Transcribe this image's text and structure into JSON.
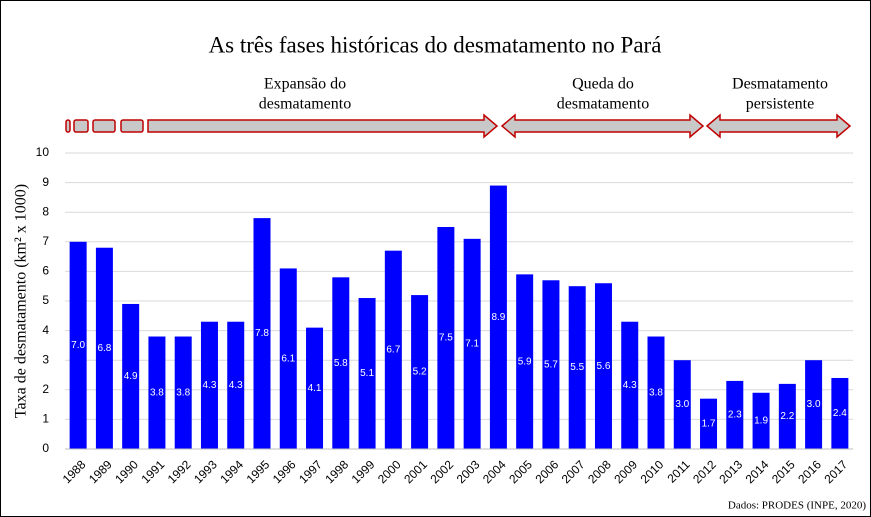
{
  "chart_data": {
    "type": "bar",
    "title": "As três fases históricas do desmatamento no Pará",
    "y_label": "Taxa de desmatamento (km² x 1000)",
    "source": "Dados: PRODES (INPE, 2020)",
    "phases": [
      [
        "Expansão do",
        "desmatamento"
      ],
      [
        "Queda do",
        "desmatamento"
      ],
      [
        "Desmatamento",
        "persistente"
      ]
    ],
    "categories": [
      "1988",
      "1989",
      "1990",
      "1991",
      "1992",
      "1993",
      "1994",
      "1995",
      "1996",
      "1997",
      "1998",
      "1999",
      "2000",
      "2001",
      "2002",
      "2003",
      "2004",
      "2005",
      "2006",
      "2007",
      "2008",
      "2009",
      "2010",
      "2011",
      "2012",
      "2013",
      "2014",
      "2015",
      "2016",
      "2017"
    ],
    "values": [
      7.0,
      6.8,
      4.9,
      3.8,
      3.8,
      4.3,
      4.3,
      7.8,
      6.1,
      4.1,
      5.8,
      5.1,
      6.7,
      5.2,
      7.5,
      7.1,
      8.9,
      5.9,
      5.7,
      5.5,
      5.6,
      4.3,
      3.8,
      3.0,
      1.7,
      2.3,
      1.9,
      2.2,
      3.0,
      2.4
    ],
    "value_labels": [
      "7.0",
      "6.8",
      "4.9",
      "3.8",
      "3.8",
      "4.3",
      "4.3",
      "7.8",
      "6.1",
      "4.1",
      "5.8",
      "5.1",
      "6.7",
      "5.2",
      "7.5",
      "7.1",
      "8.9",
      "5.9",
      "5.7",
      "5.5",
      "5.6",
      "4.3",
      "3.8",
      "3.0",
      "1.7",
      "2.3",
      "1.9",
      "2.2",
      "3.0",
      "2.4"
    ],
    "color": "#0000ff",
    "ylim": [
      0,
      10
    ],
    "yticks": [
      0,
      1,
      2,
      3,
      4,
      5,
      6,
      7,
      8,
      9,
      10
    ],
    "grid": true
  }
}
